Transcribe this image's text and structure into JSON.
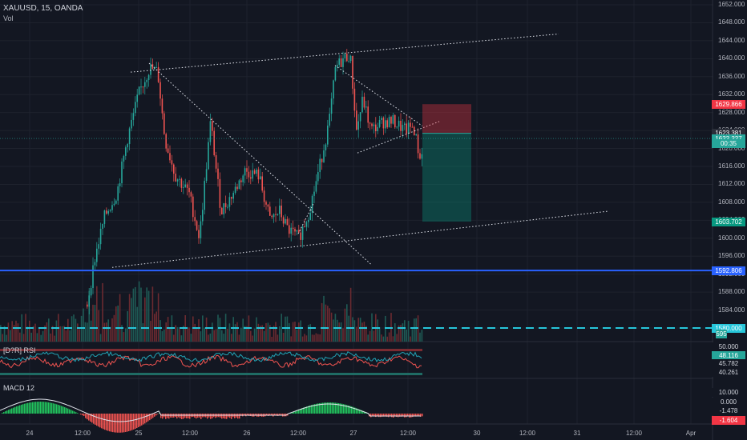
{
  "header": {
    "symbol_line": "XAUUSD, 15, OANDA",
    "volume_label": "Vol"
  },
  "indicators": {
    "rsi_label": "[D?R] RSI",
    "macd_label": "MACD",
    "macd_params": "12"
  },
  "price_axis": {
    "ticks": [
      "1652.000",
      "1648.000",
      "1644.000",
      "1640.000",
      "1636.000",
      "1632.000",
      "1628.000",
      "1624.000",
      "1620.000",
      "1616.000",
      "1612.000",
      "1608.000",
      "1604.000",
      "1600.000",
      "1596.000",
      "1592.000",
      "1588.000",
      "1584.000",
      "1580.000"
    ]
  },
  "price_tags": [
    {
      "label": "1629.866",
      "color": "#f23645",
      "value": 1629.866
    },
    {
      "label": "1623.381",
      "color": "#2a2e39",
      "value": 1623.381
    },
    {
      "label": "1622.227",
      "color": "#26a69a",
      "value": 1622.227
    },
    {
      "label": "00:35",
      "color": "#26a69a",
      "value": 1621.0
    },
    {
      "label": "1603.702",
      "color": "#089981",
      "value": 1603.702
    },
    {
      "label": "1592.806",
      "color": "#2962ff",
      "value": 1592.806
    },
    {
      "label": "1580.000",
      "color": "#26c6da",
      "value": 1580.0
    },
    {
      "label": "595",
      "color": "#26a69a",
      "value": 1578.6
    }
  ],
  "rsi_axis": [
    {
      "label": "50.000",
      "color": "#131722",
      "text": "#d1d4dc"
    },
    {
      "label": "48.116",
      "color": "#26a69a",
      "text": "#ffffff"
    },
    {
      "label": "45.782",
      "color": "#131722",
      "text": "#d1d4dc"
    },
    {
      "label": "40.261",
      "color": "#131722",
      "text": "#d1d4dc"
    }
  ],
  "macd_axis": [
    {
      "label": "10.000",
      "color": "#131722",
      "text": "#d1d4dc"
    },
    {
      "label": "0.000",
      "color": "#131722",
      "text": "#d1d4dc"
    },
    {
      "label": "-1.478",
      "color": "#131722",
      "text": "#d1d4dc"
    },
    {
      "label": "-1.604",
      "color": "#f23645",
      "text": "#ffffff"
    }
  ],
  "time_axis": [
    "24",
    "12:00",
    "25",
    "12:00",
    "26",
    "12:00",
    "27",
    "12:00",
    "30",
    "12:00",
    "31",
    "12:00",
    "Apr"
  ],
  "colors": {
    "up": "#26a69a",
    "down": "#ef5350",
    "background": "#131722",
    "grid": "#1e222d",
    "support": "#2962ff",
    "dashed": "#26c6da"
  }
}
